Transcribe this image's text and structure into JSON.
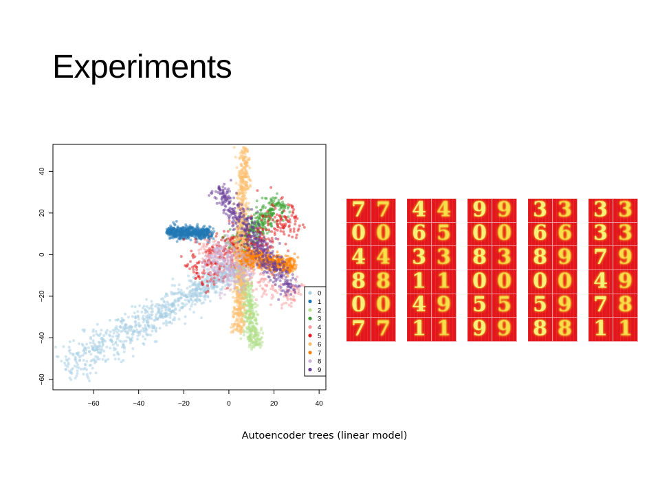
{
  "slide": {
    "title": "Experiments",
    "caption": "Autoencoder trees (linear model)"
  },
  "chart_data": {
    "type": "scatter",
    "title": "",
    "xlabel": "",
    "ylabel": "",
    "xlim": [
      -78,
      43
    ],
    "ylim": [
      -65,
      53
    ],
    "x_ticks": [
      -60,
      -40,
      -20,
      0,
      20,
      40
    ],
    "y_ticks": [
      -60,
      -40,
      -20,
      0,
      20,
      40
    ],
    "grid": false,
    "legend": "bottom-right",
    "series": [
      {
        "name": "0",
        "color": "#a6cee3",
        "cloud": {
          "type": "line",
          "x0": -73,
          "y0": -55,
          "x1": 6,
          "y1": -5,
          "spread": 3.5,
          "n": 900
        }
      },
      {
        "name": "1",
        "color": "#1f78b4",
        "cloud": {
          "type": "line",
          "x0": -27,
          "y0": 11,
          "x1": -8,
          "y1": 10,
          "spread": 1.4,
          "n": 500
        }
      },
      {
        "name": "2",
        "color": "#b2df8a",
        "cloud": {
          "type": "line",
          "x0": 5,
          "y0": -5,
          "x1": 12,
          "y1": -44,
          "spread": 1.6,
          "n": 450
        }
      },
      {
        "name": "3",
        "color": "#33a02c",
        "cloud": {
          "type": "line",
          "x0": 2,
          "y0": 2,
          "x1": 24,
          "y1": 26,
          "spread": 3.2,
          "n": 350
        }
      },
      {
        "name": "4",
        "color": "#fb9a99",
        "cloud": {
          "type": "line",
          "x0": -12,
          "y0": 5,
          "x1": 30,
          "y1": -22,
          "spread": 4,
          "n": 250
        }
      },
      {
        "name": "5",
        "color": "#e31a1c",
        "cloud": {
          "type": "line",
          "x0": -16,
          "y0": -10,
          "x1": 30,
          "y1": 20,
          "spread": 5,
          "n": 400
        }
      },
      {
        "name": "6",
        "color": "#fdbf6f",
        "cloud": {
          "type": "line",
          "x0": 7,
          "y0": 51,
          "x1": 4,
          "y1": -38,
          "spread": 1.3,
          "n": 700
        }
      },
      {
        "name": "7",
        "color": "#ff7f00",
        "cloud": {
          "type": "line",
          "x0": 6,
          "y0": 0,
          "x1": 29,
          "y1": -6,
          "spread": 2,
          "n": 500
        }
      },
      {
        "name": "8",
        "color": "#cab2d6",
        "cloud": {
          "type": "line",
          "x0": -9,
          "y0": 0,
          "x1": 9,
          "y1": -12,
          "spread": 5,
          "n": 300
        }
      },
      {
        "name": "9",
        "color": "#6a3d9a",
        "cloud": {
          "type": "line",
          "x0": -5,
          "y0": 32,
          "x1": 28,
          "y1": -18,
          "spread": 2.5,
          "n": 450
        }
      }
    ]
  },
  "digit_panels": [
    {
      "pairs": [
        [
          "7",
          "7"
        ],
        [
          "0",
          "0"
        ],
        [
          "4",
          "4"
        ],
        [
          "8",
          "8"
        ],
        [
          "0",
          "0"
        ],
        [
          "7",
          "7"
        ]
      ]
    },
    {
      "pairs": [
        [
          "4",
          "4"
        ],
        [
          "6",
          "5"
        ],
        [
          "3",
          "3"
        ],
        [
          "1",
          "1"
        ],
        [
          "4",
          "9"
        ],
        [
          "1",
          "1"
        ]
      ]
    },
    {
      "pairs": [
        [
          "9",
          "9"
        ],
        [
          "0",
          "0"
        ],
        [
          "8",
          "3"
        ],
        [
          "0",
          "0"
        ],
        [
          "5",
          "5"
        ],
        [
          "9",
          "9"
        ]
      ]
    },
    {
      "pairs": [
        [
          "3",
          "3"
        ],
        [
          "6",
          "6"
        ],
        [
          "8",
          "9"
        ],
        [
          "0",
          "0"
        ],
        [
          "5",
          "9"
        ],
        [
          "8",
          "8"
        ]
      ]
    },
    {
      "pairs": [
        [
          "3",
          "3"
        ],
        [
          "3",
          "3"
        ],
        [
          "7",
          "9"
        ],
        [
          "4",
          "9"
        ],
        [
          "7",
          "8"
        ],
        [
          "1",
          "1"
        ]
      ]
    }
  ]
}
